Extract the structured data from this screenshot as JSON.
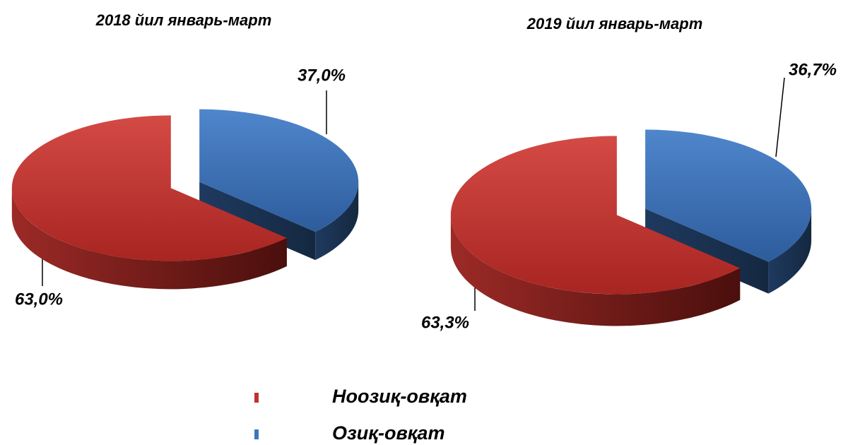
{
  "chart_data": [
    {
      "type": "pie",
      "title": "2018 йил январь-март",
      "values": [
        63.0,
        37.0
      ],
      "value_labels": [
        "63,0%",
        "37,0%"
      ]
    },
    {
      "type": "pie",
      "title": "2019 йил январь-март",
      "values": [
        63.3,
        36.7
      ],
      "value_labels": [
        "63,3%",
        "36,7%"
      ]
    }
  ],
  "legend": {
    "categories": [
      "Ноозиқ-овқат",
      "Озиқ-овқат"
    ],
    "colors": [
      "#c0312f",
      "#3d76c0"
    ]
  }
}
